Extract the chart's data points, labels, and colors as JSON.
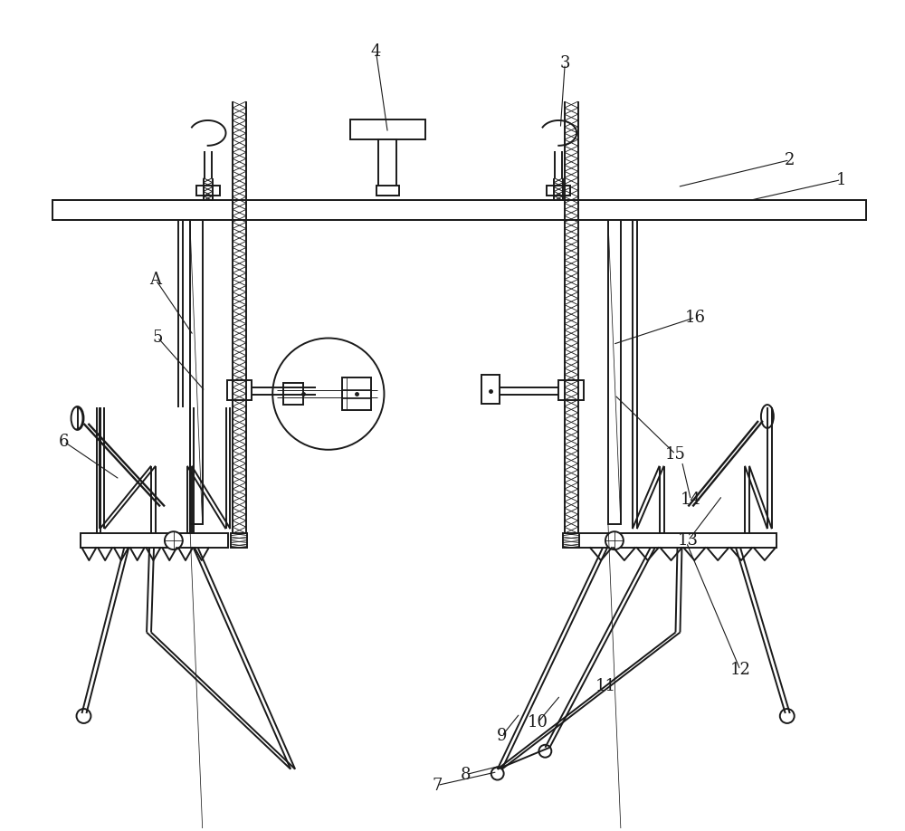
{
  "bg_color": "#ffffff",
  "line_color": "#1a1a1a",
  "lw": 1.4,
  "thin_lw": 0.7,
  "fs": 13
}
